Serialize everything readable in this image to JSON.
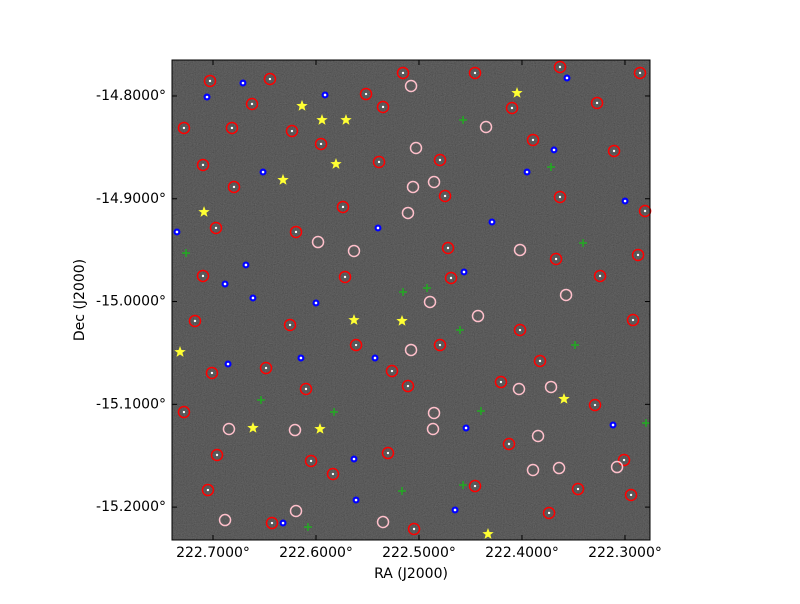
{
  "chart_data": {
    "type": "scatter",
    "xlabel": "RA (J2000)",
    "ylabel": "Dec (J2000)",
    "xlim": [
      222.7398,
      222.2757
    ],
    "ylim": [
      -15.232,
      -14.765
    ],
    "xticks": [
      {
        "value": 222.7,
        "label": "222.7000°"
      },
      {
        "value": 222.6,
        "label": "222.6000°"
      },
      {
        "value": 222.5,
        "label": "222.5000°"
      },
      {
        "value": 222.4,
        "label": "222.4000°"
      },
      {
        "value": 222.3,
        "label": "222.3000°"
      }
    ],
    "yticks": [
      {
        "value": -14.8,
        "label": "-14.8000°"
      },
      {
        "value": -14.9,
        "label": "-14.9000°"
      },
      {
        "value": -15.0,
        "label": "-15.0000°"
      },
      {
        "value": -15.1,
        "label": "-15.1000°"
      },
      {
        "value": -15.2,
        "label": "-15.2000°"
      }
    ],
    "background": "#262626",
    "series": [
      {
        "color": "#ff0000",
        "marker": "ring-dot",
        "x": [
          222.7282,
          222.7029,
          222.6621,
          222.6447,
          222.5514,
          222.5155,
          222.4456,
          222.3631,
          222.2854,
          222.6816,
          222.6233,
          222.5349,
          222.4097,
          222.3271,
          222.7097,
          222.5951,
          222.5388,
          222.4796,
          222.3893,
          222.3106,
          222.6796,
          222.5738,
          222.4747,
          222.3631,
          222.2805,
          222.6971,
          222.6194,
          222.4718,
          222.3669,
          222.2873,
          222.7097,
          222.5718,
          222.4689,
          222.3242,
          222.7175,
          222.6252,
          222.5611,
          222.4796,
          222.4019,
          222.2922,
          222.701,
          222.6485,
          222.5262,
          222.3825,
          222.7282,
          222.6097,
          222.5107,
          222.4204,
          222.3291,
          222.6961,
          222.6048,
          222.5301,
          222.4126,
          222.3009,
          222.7049,
          222.5835,
          222.4456,
          222.3456,
          222.6427,
          222.5048,
          222.3737,
          222.2941
        ],
        "values": [
          -14.8311,
          -14.7854,
          -14.8078,
          -14.7835,
          -14.7981,
          -14.7776,
          -14.7776,
          -14.7718,
          -14.7776,
          -14.8311,
          -14.8341,
          -14.8107,
          -14.8117,
          -14.8068,
          -14.8671,
          -14.8467,
          -14.8642,
          -14.8623,
          -14.8428,
          -14.8535,
          -14.8885,
          -14.908,
          -14.8973,
          -14.8983,
          -14.9119,
          -14.9284,
          -14.9323,
          -14.9479,
          -14.9586,
          -14.9547,
          -14.9751,
          -14.9761,
          -14.9771,
          -14.9751,
          -15.0189,
          -15.0228,
          -15.0423,
          -15.0423,
          -15.0277,
          -15.018,
          -15.0695,
          -15.0647,
          -15.0676,
          -15.0578,
          -15.1075,
          -15.0851,
          -15.0822,
          -15.0783,
          -15.1007,
          -15.1493,
          -15.1551,
          -15.1474,
          -15.1386,
          -15.1542,
          -15.1834,
          -15.1678,
          -15.1795,
          -15.1824,
          -15.2155,
          -15.2213,
          -15.2057,
          -15.1882
        ]
      },
      {
        "color": "#ffc0cb",
        "marker": "ring",
        "x": [
          222.5077,
          222.4349,
          222.5029,
          222.5058,
          222.4854,
          222.5107,
          222.598,
          222.5631,
          222.4019,
          222.3572,
          222.4427,
          222.4893,
          222.5077,
          222.3718,
          222.4029,
          222.4854,
          222.4864,
          222.6204,
          222.3844,
          222.6845,
          222.3077,
          222.364,
          222.3893,
          222.6194,
          222.6883,
          222.5349
        ],
        "values": [
          -14.7903,
          -14.8302,
          -14.8506,
          -14.8885,
          -14.8837,
          -14.9138,
          -14.9421,
          -14.9508,
          -14.9498,
          -14.9936,
          -15.0141,
          -15.0004,
          -15.0471,
          -15.0831,
          -15.0851,
          -15.1084,
          -15.124,
          -15.125,
          -15.1308,
          -15.124,
          -15.161,
          -15.162,
          -15.1639,
          -15.2038,
          -15.2126,
          -15.2145
        ]
      },
      {
        "color": "#0000ff",
        "marker": "dot",
        "x": [
          222.7058,
          222.6709,
          222.5912,
          222.3563,
          222.3689,
          222.6514,
          222.3951,
          222.2999,
          222.5398,
          222.4291,
          222.735,
          222.668,
          222.4563,
          222.6612,
          222.6883,
          222.6,
          222.5427,
          222.6146,
          222.6854,
          222.4543,
          222.5631,
          222.3116,
          222.5611,
          222.465,
          222.632
        ],
        "values": [
          -14.801,
          -14.7874,
          -14.799,
          -14.7825,
          -14.8525,
          -14.874,
          -14.874,
          -14.9022,
          -14.9284,
          -14.9226,
          -14.9323,
          -14.9644,
          -14.9712,
          -14.9965,
          -14.9829,
          -15.0014,
          -15.0549,
          -15.0549,
          -15.0608,
          -15.123,
          -15.1532,
          -15.1201,
          -15.1931,
          -15.2028,
          -15.2155
        ]
      },
      {
        "color": "#22aa22",
        "marker": "plus",
        "x": [
          222.4572,
          222.3718,
          222.7262,
          222.4922,
          222.3407,
          222.5155,
          222.4602,
          222.3485,
          222.6534,
          222.5825,
          222.4398,
          222.4572,
          222.5165,
          222.6078,
          222.2796
        ],
        "values": [
          -14.8234,
          -14.8691,
          -14.9528,
          -14.9868,
          -14.943,
          -14.9907,
          -15.0277,
          -15.0423,
          -15.0958,
          -15.1075,
          -15.1065,
          -15.1785,
          -15.1843,
          -15.2194,
          -15.1182
        ]
      },
      {
        "color": "#ffff33",
        "marker": "star",
        "x": [
          222.6136,
          222.5942,
          222.5709,
          222.4048,
          222.5806,
          222.632,
          222.7087,
          222.5631,
          222.5165,
          222.732,
          222.3592,
          222.5961,
          222.6612,
          222.433
        ],
        "values": [
          -14.8097,
          -14.8234,
          -14.8234,
          -14.7971,
          -14.8662,
          -14.8817,
          -14.9129,
          -15.018,
          -15.0189,
          -15.0491,
          -15.0948,
          -15.124,
          -15.123,
          -15.2262
        ]
      }
    ]
  }
}
